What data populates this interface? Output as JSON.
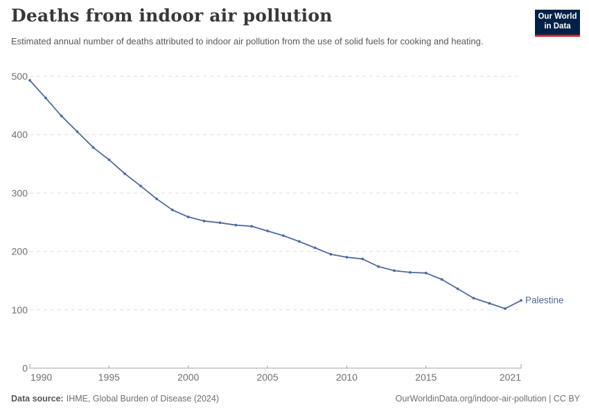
{
  "logo": {
    "line1": "Our World",
    "line2": "in Data"
  },
  "footer": {
    "source_label": "Data source:",
    "source_value": "IHME, Global Burden of Disease (2024)",
    "credit": "OurWorldinData.org/indoor-air-pollution | CC BY"
  },
  "colors": {
    "line": "#4c6a9c",
    "grid": "#dddddd",
    "axis": "#a3a3a3",
    "tick_label": "#6e6e6e",
    "title": "#383838",
    "subtitle": "#575757",
    "logo_bg": "#002147",
    "logo_accent": "#cd232d"
  },
  "chart_data": {
    "type": "line",
    "title": "Deaths from indoor air pollution",
    "subtitle": "Estimated annual number of deaths attributed to indoor air pollution from the use of solid fuels for cooking and heating.",
    "xlabel": "",
    "ylabel": "",
    "xlim": [
      1990,
      2021
    ],
    "ylim": [
      0,
      500
    ],
    "yticks": [
      0,
      100,
      200,
      300,
      400,
      500
    ],
    "xticks": [
      1990,
      1995,
      2000,
      2005,
      2010,
      2015,
      2021
    ],
    "grid": "horizontal-dashed",
    "legend_position": "end-of-line-label",
    "x": [
      1990,
      1991,
      1992,
      1993,
      1994,
      1995,
      1996,
      1997,
      1998,
      1999,
      2000,
      2001,
      2002,
      2003,
      2004,
      2005,
      2006,
      2007,
      2008,
      2009,
      2010,
      2011,
      2012,
      2013,
      2014,
      2015,
      2016,
      2017,
      2018,
      2019,
      2020,
      2021
    ],
    "series": [
      {
        "name": "Palestine",
        "color": "#4c6a9c",
        "values": [
          493,
          463,
          432,
          405,
          378,
          357,
          333,
          312,
          290,
          271,
          259,
          252,
          249,
          245,
          243,
          235,
          227,
          217,
          206,
          195,
          190,
          187,
          174,
          167,
          164,
          163,
          152,
          136,
          120,
          111,
          102,
          116
        ]
      }
    ]
  }
}
